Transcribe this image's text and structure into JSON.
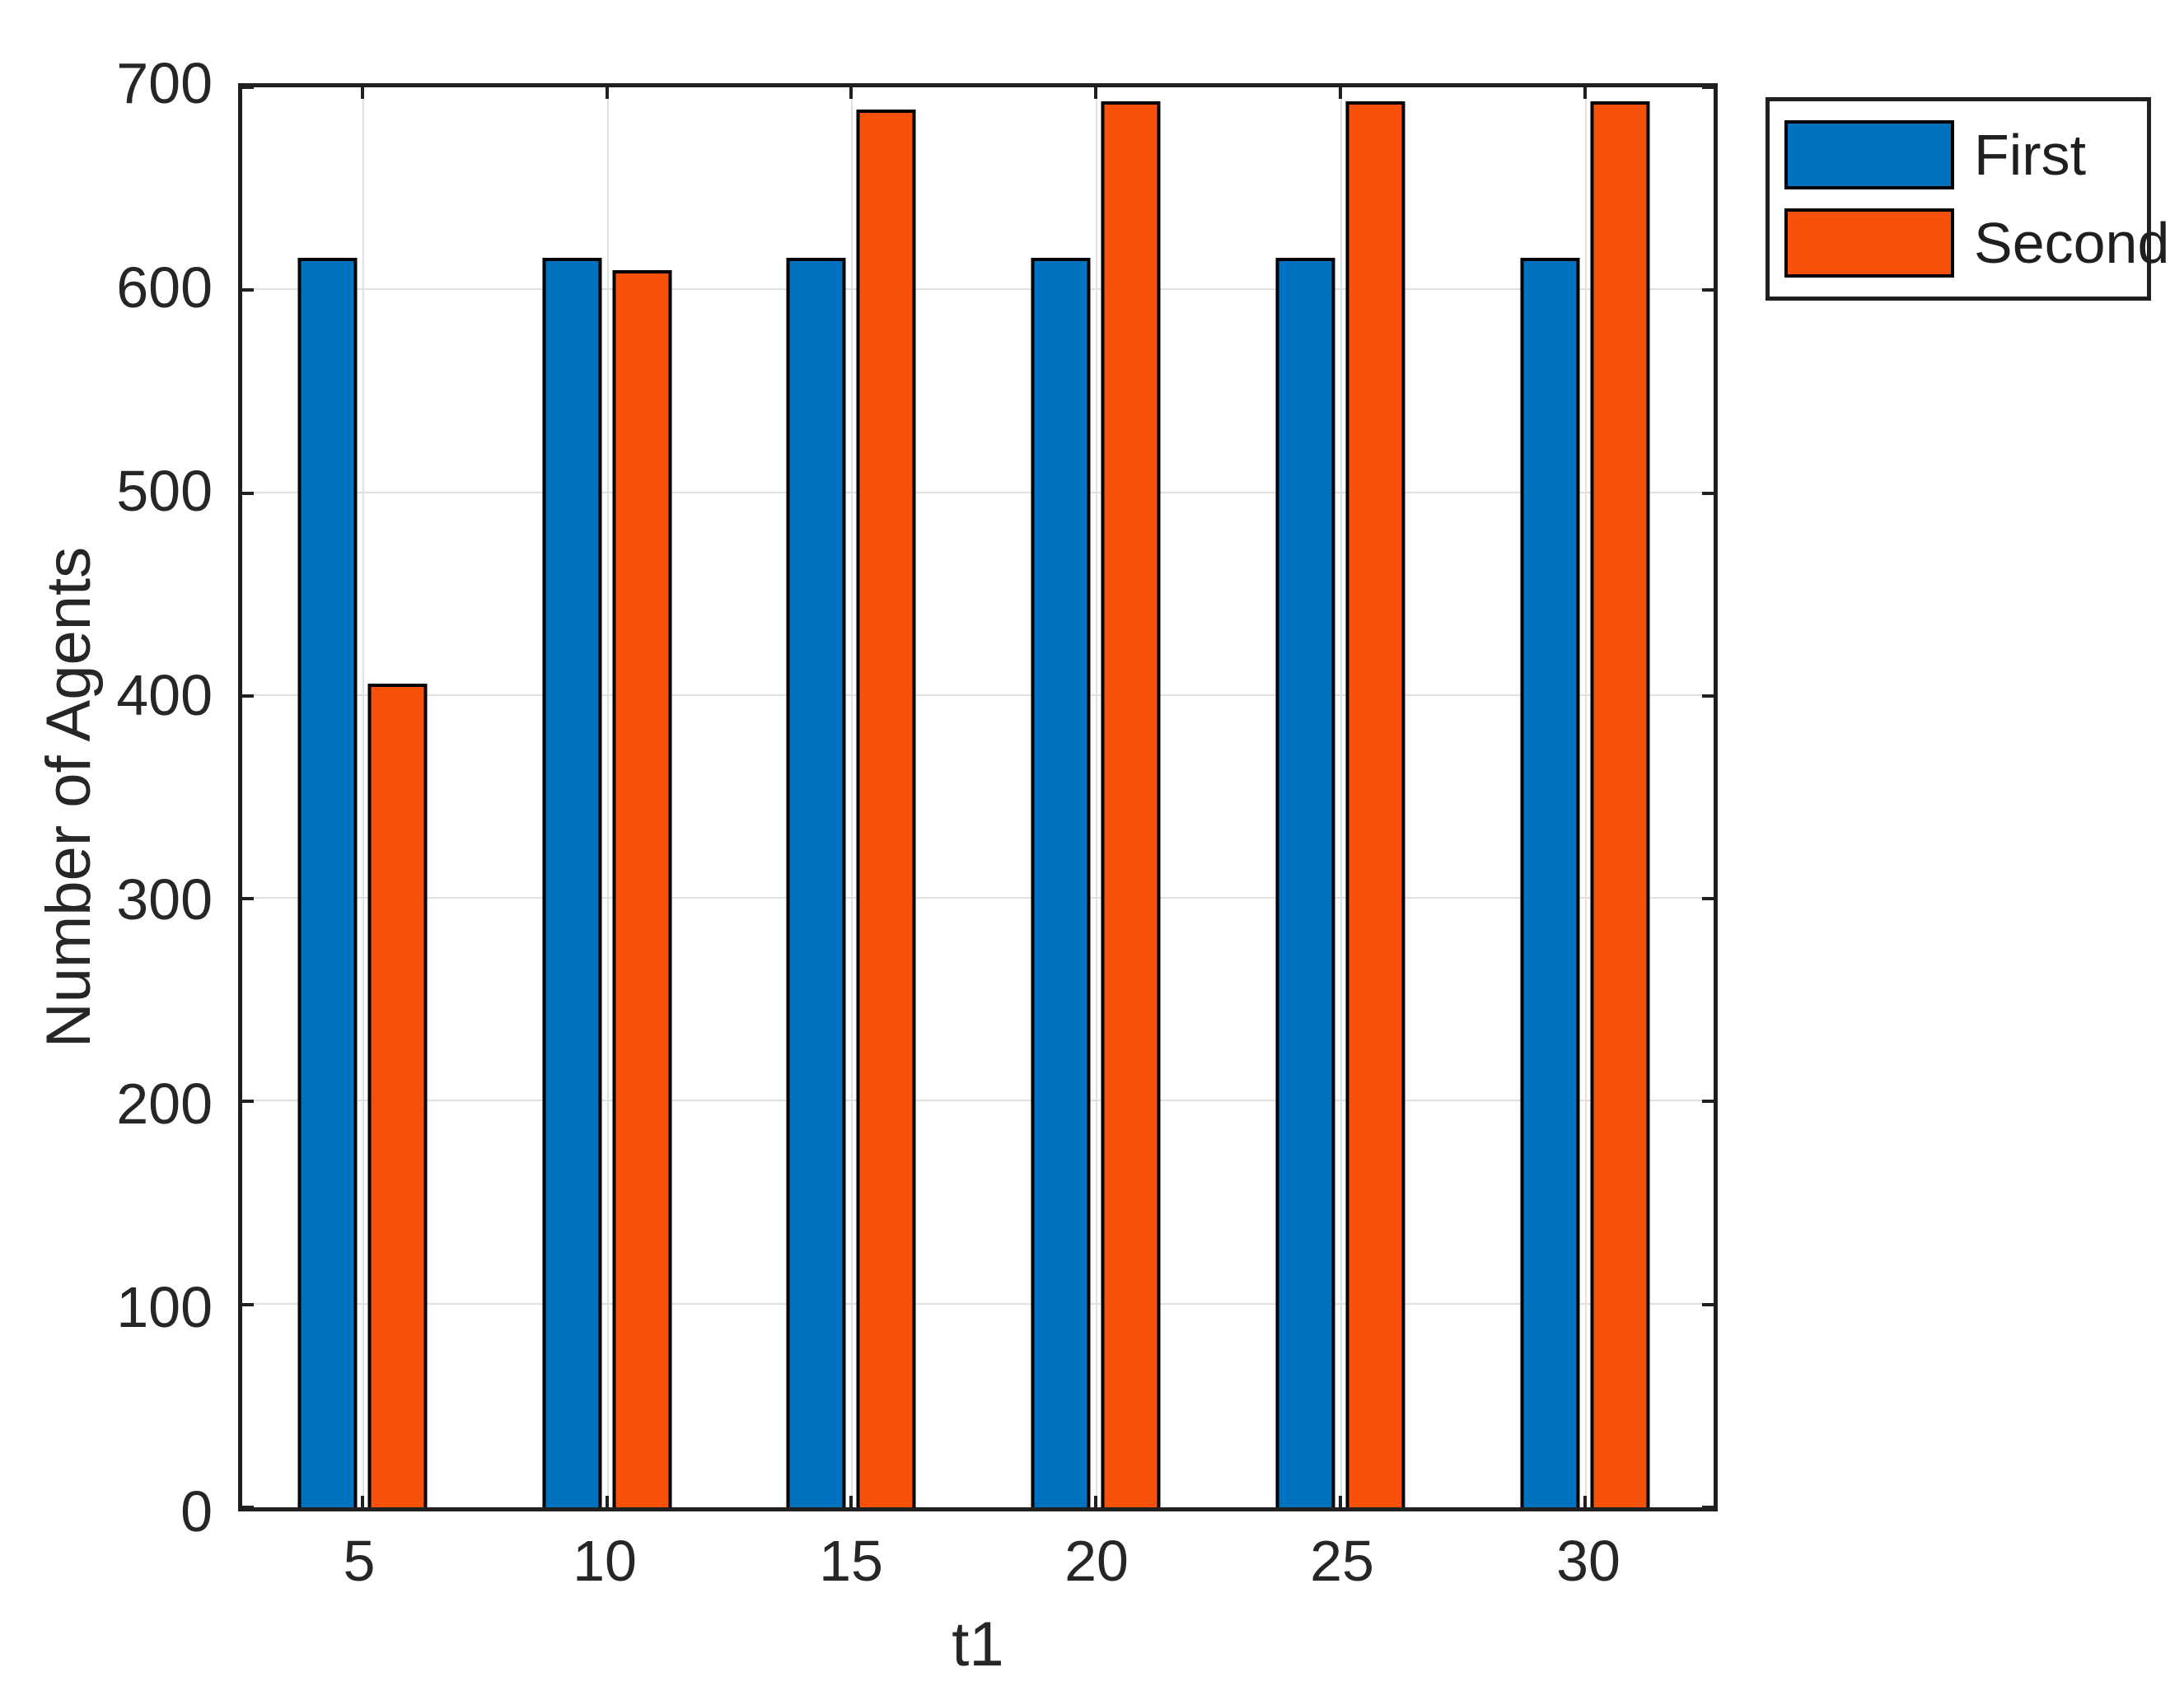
{
  "chart_data": {
    "type": "bar",
    "title": "",
    "xlabel": "t1",
    "ylabel": "Number of Agents",
    "categories": [
      "5",
      "10",
      "15",
      "20",
      "25",
      "30"
    ],
    "series": [
      {
        "name": "First",
        "color": "#0072BF",
        "values": [
          616,
          616,
          616,
          616,
          616,
          616
        ]
      },
      {
        "name": "Second",
        "color": "#F85109",
        "values": [
          406,
          610,
          689,
          693,
          693,
          693
        ]
      }
    ],
    "ylim": [
      0,
      700
    ],
    "yticks": [
      0,
      100,
      200,
      300,
      400,
      500,
      600,
      700
    ],
    "grid": true,
    "legend_position": "outside-top-right"
  },
  "colors": {
    "axis": "#1F1F1F",
    "grid": "#E0E0E0",
    "text": "#262626",
    "bar_edge": "#000000",
    "background": "#FFFFFF"
  }
}
